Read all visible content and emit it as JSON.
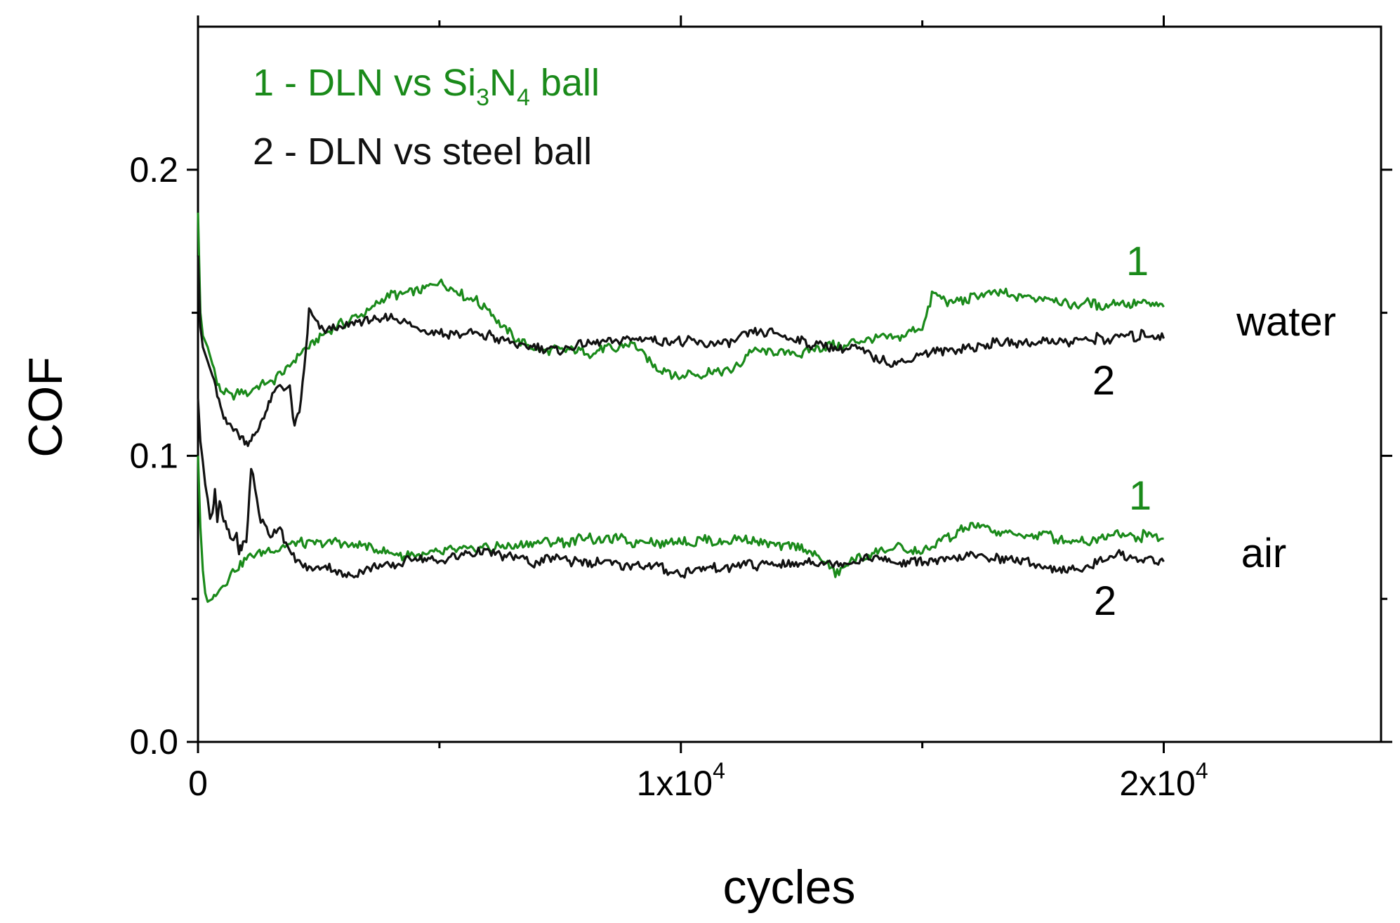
{
  "chart_data": {
    "type": "line",
    "xlabel": "cycles",
    "ylabel": "COF",
    "xlim": [
      0,
      24500
    ],
    "ylim": [
      0,
      0.25
    ],
    "x_ticks": [
      {
        "value": 0,
        "mantissa": "0",
        "exponent": ""
      },
      {
        "value": 10000,
        "mantissa": "1x10",
        "exponent": "4"
      },
      {
        "value": 20000,
        "mantissa": "2x10",
        "exponent": "4"
      }
    ],
    "y_ticks": [
      {
        "value": 0.0,
        "label": "0.0"
      },
      {
        "value": 0.1,
        "label": "0.1"
      },
      {
        "value": 0.2,
        "label": "0.2"
      }
    ],
    "legend": {
      "position": "top-left",
      "entries": [
        {
          "id": "s1",
          "prefix": "1 - DLN vs Si",
          "sub1": "3",
          "mid": "N",
          "sub2": "4",
          "suffix": " ball",
          "color": "#1a8a1a"
        },
        {
          "id": "s2",
          "prefix": "2 - DLN vs steel ball",
          "sub1": "",
          "mid": "",
          "sub2": "",
          "suffix": "",
          "color": "#111111"
        }
      ]
    },
    "annotations": {
      "water": "water",
      "air": "air",
      "water_1": "1",
      "water_2": "2",
      "air_1": "1",
      "air_2": "2"
    },
    "series": [
      {
        "name": "1 - DLN vs Si3N4 ball (water)",
        "color": "#1a8a1a",
        "x": [
          0,
          50,
          100,
          200,
          300,
          400,
          500,
          700,
          900,
          1100,
          1300,
          1500,
          1700,
          1900,
          2100,
          2300,
          2600,
          3000,
          3500,
          4000,
          4500,
          5000,
          5500,
          6000,
          6300,
          6600,
          7000,
          7500,
          8000,
          8500,
          9000,
          9500,
          10000,
          10500,
          11000,
          11500,
          12000,
          12500,
          13000,
          13500,
          14000,
          14500,
          15000,
          15200,
          15600,
          16000,
          16500,
          17000,
          17500,
          18000,
          18500,
          19000,
          19500,
          20000
        ],
        "y": [
          0.185,
          0.15,
          0.142,
          0.138,
          0.132,
          0.125,
          0.122,
          0.121,
          0.122,
          0.123,
          0.124,
          0.126,
          0.128,
          0.132,
          0.135,
          0.138,
          0.142,
          0.146,
          0.151,
          0.156,
          0.158,
          0.161,
          0.156,
          0.152,
          0.145,
          0.141,
          0.138,
          0.137,
          0.136,
          0.137,
          0.139,
          0.131,
          0.128,
          0.129,
          0.129,
          0.137,
          0.137,
          0.136,
          0.138,
          0.139,
          0.14,
          0.142,
          0.145,
          0.156,
          0.154,
          0.155,
          0.157,
          0.156,
          0.155,
          0.153,
          0.153,
          0.153,
          0.153,
          0.152
        ]
      },
      {
        "name": "2 - DLN vs steel ball (water)",
        "color": "#111111",
        "x": [
          0,
          50,
          100,
          200,
          300,
          400,
          500,
          600,
          700,
          800,
          900,
          1000,
          1100,
          1200,
          1300,
          1400,
          1500,
          1700,
          1900,
          2000,
          2100,
          2200,
          2300,
          2400,
          2600,
          3000,
          3500,
          4000,
          4500,
          5000,
          5500,
          6000,
          6500,
          7000,
          7500,
          8000,
          8500,
          9000,
          9500,
          10000,
          10500,
          11000,
          11500,
          12000,
          12500,
          13000,
          13500,
          14000,
          14500,
          15000,
          15500,
          16000,
          16500,
          17000,
          17500,
          18000,
          18500,
          19000,
          19500,
          20000
        ],
        "y": [
          0.17,
          0.145,
          0.138,
          0.133,
          0.128,
          0.122,
          0.115,
          0.112,
          0.112,
          0.108,
          0.106,
          0.104,
          0.106,
          0.108,
          0.112,
          0.115,
          0.12,
          0.125,
          0.124,
          0.11,
          0.115,
          0.13,
          0.15,
          0.147,
          0.143,
          0.145,
          0.147,
          0.148,
          0.145,
          0.143,
          0.143,
          0.142,
          0.139,
          0.138,
          0.136,
          0.139,
          0.14,
          0.141,
          0.14,
          0.14,
          0.139,
          0.14,
          0.144,
          0.143,
          0.14,
          0.138,
          0.138,
          0.134,
          0.132,
          0.136,
          0.137,
          0.138,
          0.139,
          0.139,
          0.14,
          0.14,
          0.141,
          0.141,
          0.142,
          0.141
        ]
      },
      {
        "name": "1 - DLN vs Si3N4 ball (air)",
        "color": "#1a8a1a",
        "x": [
          0,
          50,
          100,
          150,
          200,
          300,
          400,
          600,
          800,
          1000,
          1200,
          1500,
          1800,
          2100,
          2500,
          3000,
          3500,
          4000,
          4500,
          5000,
          5500,
          6000,
          6500,
          7000,
          7500,
          8000,
          8500,
          9000,
          9500,
          10000,
          10500,
          11000,
          11500,
          12000,
          12500,
          13000,
          13200,
          13500,
          14000,
          14500,
          15000,
          15500,
          16000,
          16500,
          17000,
          17500,
          18000,
          18500,
          19000,
          19500,
          20000
        ],
        "y": [
          0.1,
          0.075,
          0.06,
          0.052,
          0.049,
          0.05,
          0.053,
          0.057,
          0.061,
          0.064,
          0.066,
          0.067,
          0.068,
          0.069,
          0.07,
          0.07,
          0.068,
          0.066,
          0.065,
          0.066,
          0.067,
          0.068,
          0.068,
          0.069,
          0.07,
          0.071,
          0.071,
          0.07,
          0.07,
          0.07,
          0.07,
          0.071,
          0.07,
          0.069,
          0.068,
          0.063,
          0.058,
          0.063,
          0.066,
          0.068,
          0.066,
          0.071,
          0.075,
          0.074,
          0.072,
          0.072,
          0.071,
          0.07,
          0.073,
          0.072,
          0.071
        ]
      },
      {
        "name": "2 - DLN vs steel ball (air)",
        "color": "#111111",
        "x": [
          0,
          50,
          100,
          150,
          200,
          250,
          300,
          350,
          400,
          450,
          500,
          600,
          700,
          800,
          850,
          900,
          1000,
          1100,
          1300,
          1500,
          1700,
          1900,
          2100,
          2300,
          2600,
          3000,
          3500,
          4000,
          4500,
          5000,
          5500,
          6000,
          6500,
          7000,
          7500,
          8000,
          8500,
          9000,
          9500,
          10000,
          10500,
          11000,
          11500,
          12000,
          12500,
          13000,
          13500,
          14000,
          14500,
          15000,
          15500,
          16000,
          16500,
          17000,
          17500,
          18000,
          18500,
          19000,
          19500,
          20000
        ],
        "y": [
          0.12,
          0.105,
          0.098,
          0.09,
          0.085,
          0.078,
          0.08,
          0.088,
          0.078,
          0.085,
          0.079,
          0.075,
          0.069,
          0.073,
          0.066,
          0.068,
          0.07,
          0.097,
          0.077,
          0.072,
          0.075,
          0.066,
          0.062,
          0.06,
          0.062,
          0.058,
          0.06,
          0.062,
          0.064,
          0.063,
          0.065,
          0.067,
          0.064,
          0.063,
          0.064,
          0.063,
          0.062,
          0.062,
          0.061,
          0.059,
          0.06,
          0.061,
          0.062,
          0.062,
          0.063,
          0.062,
          0.063,
          0.064,
          0.063,
          0.064,
          0.064,
          0.065,
          0.064,
          0.063,
          0.061,
          0.06,
          0.062,
          0.066,
          0.064,
          0.063
        ]
      }
    ]
  }
}
